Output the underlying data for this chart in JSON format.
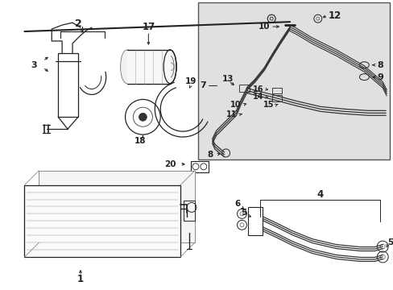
{
  "bg_color": "#ffffff",
  "line_color": "#222222",
  "box_bg": "#e0e0e0",
  "figsize": [
    4.89,
    3.6
  ],
  "dpi": 100
}
